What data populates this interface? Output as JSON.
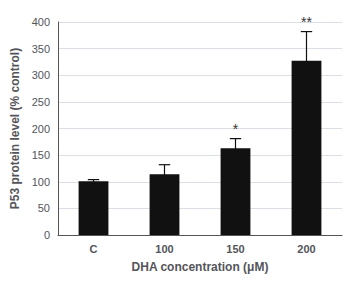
{
  "chart_data": {
    "type": "bar",
    "categories": [
      "C",
      "100",
      "150",
      "200"
    ],
    "values": [
      101,
      114,
      163,
      327
    ],
    "errors": [
      3,
      18,
      18,
      55
    ],
    "color": "#111111",
    "xlabel": "DHA concentration (μM)",
    "ylabel": "P53 protein level (% control)",
    "ylim": [
      0,
      400
    ],
    "yticks": [
      0,
      50,
      100,
      150,
      200,
      250,
      300,
      350,
      400
    ],
    "annotations": [
      {
        "category": "150",
        "text": "*"
      },
      {
        "category": "200",
        "text": "**"
      }
    ],
    "grid": true
  }
}
